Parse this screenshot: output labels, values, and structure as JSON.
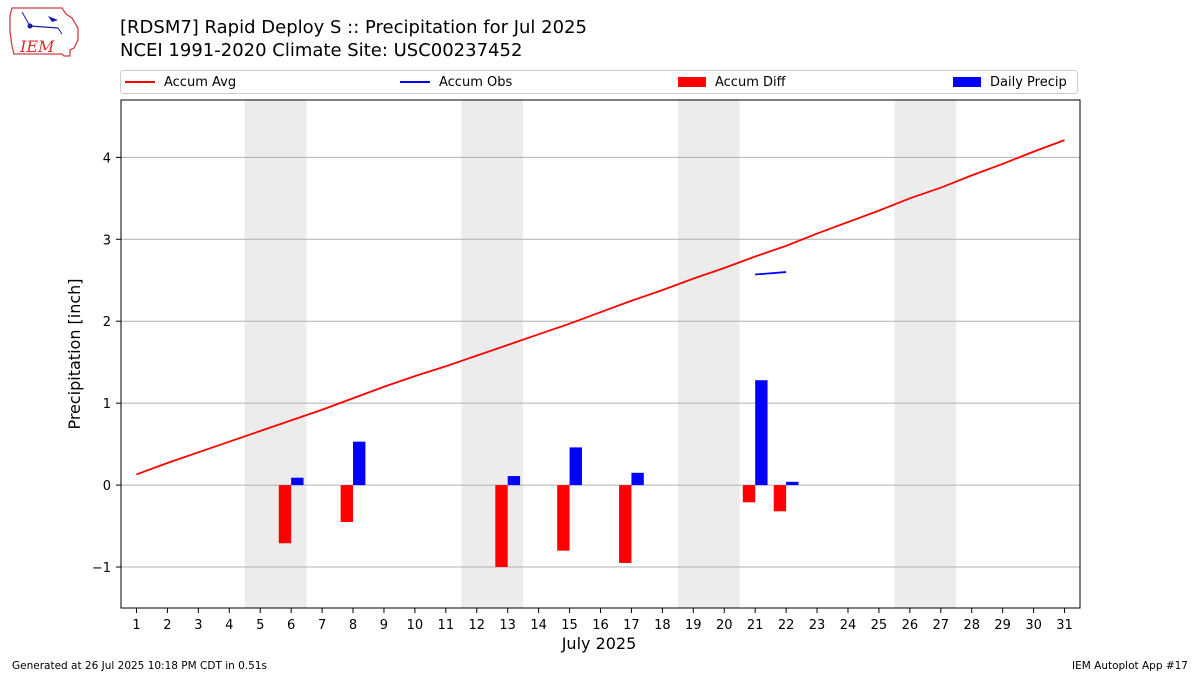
{
  "header": {
    "title_line1": "[RDSM7] Rapid Deploy S :: Precipitation for Jul 2025",
    "title_line2": "NCEI 1991-2020 Climate Site: USC00237452"
  },
  "logo": {
    "text": "IEM"
  },
  "footer": {
    "left": "Generated at 26 Jul 2025 10:18 PM CDT in 0.51s",
    "right": "IEM Autoplot App #17"
  },
  "colors": {
    "avg": "#ff0000",
    "obs": "#0000ff",
    "diff": "#ff0000",
    "daily": "#0000ff",
    "weekend": "#ececec",
    "grid": "#b0b0b0"
  },
  "chart_data": {
    "type": "bar",
    "title": "[RDSM7] Rapid Deploy S :: Precipitation for Jul 2025",
    "xlabel": "July 2025",
    "ylabel": "Precipitation [inch]",
    "xlim": [
      0.5,
      31.5
    ],
    "ylim": [
      -1.5,
      4.7
    ],
    "yticks": [
      -1,
      0,
      1,
      2,
      3,
      4
    ],
    "ytick_labels": [
      "−1",
      "0",
      "1",
      "2",
      "3",
      "4"
    ],
    "grid": "horizontal",
    "legend": [
      {
        "label": "Accum Avg",
        "kind": "line",
        "color": "#ff0000"
      },
      {
        "label": "Accum Obs",
        "kind": "line",
        "color": "#0000ff"
      },
      {
        "label": "Accum Diff",
        "kind": "bar",
        "color": "#ff0000"
      },
      {
        "label": "Daily Precip",
        "kind": "bar",
        "color": "#0000ff"
      }
    ],
    "days": [
      1,
      2,
      3,
      4,
      5,
      6,
      7,
      8,
      9,
      10,
      11,
      12,
      13,
      14,
      15,
      16,
      17,
      18,
      19,
      20,
      21,
      22,
      23,
      24,
      25,
      26,
      27,
      28,
      29,
      30,
      31
    ],
    "weekend_spans": [
      [
        4.5,
        6.5
      ],
      [
        11.5,
        13.5
      ],
      [
        18.5,
        20.5
      ],
      [
        25.5,
        27.5
      ]
    ],
    "series": [
      {
        "name": "Accum Avg",
        "kind": "line",
        "x": [
          1,
          2,
          3,
          4,
          5,
          6,
          7,
          8,
          9,
          10,
          11,
          12,
          13,
          14,
          15,
          16,
          17,
          18,
          19,
          20,
          21,
          22,
          23,
          24,
          25,
          26,
          27,
          28,
          29,
          30,
          31
        ],
        "values": [
          0.13,
          0.27,
          0.4,
          0.53,
          0.66,
          0.79,
          0.92,
          1.06,
          1.2,
          1.33,
          1.45,
          1.58,
          1.71,
          1.84,
          1.97,
          2.11,
          2.25,
          2.38,
          2.52,
          2.65,
          2.79,
          2.92,
          3.07,
          3.21,
          3.35,
          3.5,
          3.63,
          3.78,
          3.92,
          4.07,
          4.21
        ]
      },
      {
        "name": "Accum Obs",
        "kind": "line",
        "x": [
          21,
          22
        ],
        "values": [
          2.57,
          2.6
        ]
      },
      {
        "name": "Accum Diff",
        "kind": "bar",
        "x": [
          6,
          8,
          13,
          15,
          17,
          21,
          22
        ],
        "values": [
          -0.71,
          -0.45,
          -1.0,
          -0.8,
          -0.95,
          -0.21,
          -0.32
        ]
      },
      {
        "name": "Daily Precip",
        "kind": "bar",
        "x": [
          6,
          8,
          13,
          15,
          17,
          21,
          22
        ],
        "values": [
          0.09,
          0.53,
          0.11,
          0.46,
          0.15,
          1.28,
          0.04
        ]
      }
    ]
  }
}
